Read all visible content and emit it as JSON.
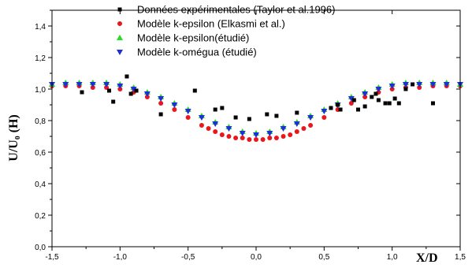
{
  "chart_data": {
    "type": "scatter",
    "xlabel": "X/D",
    "ylabel": "U/U₀ (H)",
    "xlim": [
      -1.5,
      1.5
    ],
    "ylim": [
      0.0,
      1.5
    ],
    "xticks": [
      -1.5,
      -1.0,
      -0.5,
      0.0,
      0.5,
      1.0,
      1.5
    ],
    "xtick_labels": [
      "-1,5",
      "-1,0",
      "-0,5",
      "0,0",
      "0,5",
      "1,0",
      "1,5"
    ],
    "yticks": [
      0.0,
      0.2,
      0.4,
      0.6,
      0.8,
      1.0,
      1.2,
      1.4
    ],
    "ytick_labels": [
      "0,0",
      "0,2",
      "0,4",
      "0,6",
      "0,8",
      "1,0",
      "1,2",
      "1,4"
    ],
    "grid": false,
    "legend_position": "top-center",
    "series": [
      {
        "name": "Données expérimentales (Taylor et al.1996)",
        "marker": "square",
        "color": "#000000",
        "x": [
          -1.28,
          -1.08,
          -1.05,
          -0.95,
          -0.92,
          -0.88,
          -0.7,
          -0.45,
          -0.3,
          -0.25,
          -0.15,
          -0.05,
          0.08,
          0.15,
          0.3,
          0.55,
          0.6,
          0.62,
          0.72,
          0.75,
          0.8,
          0.85,
          0.88,
          0.9,
          0.95,
          0.98,
          1.02,
          1.05,
          1.1,
          1.15,
          1.3
        ],
        "y": [
          0.98,
          0.99,
          0.92,
          1.08,
          0.97,
          0.99,
          0.84,
          0.99,
          0.87,
          0.88,
          0.82,
          0.81,
          0.84,
          0.83,
          0.85,
          0.88,
          0.9,
          0.87,
          0.93,
          0.87,
          0.89,
          0.95,
          0.97,
          0.93,
          0.91,
          0.91,
          0.94,
          0.91,
          1.0,
          1.03,
          0.91
        ]
      },
      {
        "name": "Modèle k-epsilon (Elkasmi et al.)",
        "marker": "circle",
        "color": "#e8171b",
        "x": [
          -1.5,
          -1.4,
          -1.3,
          -1.2,
          -1.1,
          -1.0,
          -0.9,
          -0.8,
          -0.7,
          -0.6,
          -0.5,
          -0.4,
          -0.35,
          -0.3,
          -0.25,
          -0.2,
          -0.15,
          -0.1,
          -0.05,
          0.0,
          0.05,
          0.1,
          0.15,
          0.2,
          0.25,
          0.3,
          0.35,
          0.4,
          0.5,
          0.6,
          0.7,
          0.8,
          0.9,
          1.0,
          1.1,
          1.2,
          1.3,
          1.4,
          1.5
        ],
        "y": [
          1.02,
          1.02,
          1.02,
          1.01,
          1.01,
          1.0,
          0.98,
          0.95,
          0.91,
          0.87,
          0.82,
          0.77,
          0.75,
          0.73,
          0.71,
          0.7,
          0.69,
          0.69,
          0.68,
          0.68,
          0.68,
          0.69,
          0.69,
          0.7,
          0.71,
          0.73,
          0.75,
          0.77,
          0.82,
          0.87,
          0.91,
          0.95,
          0.98,
          1.0,
          1.01,
          1.01,
          1.02,
          1.02,
          1.02
        ]
      },
      {
        "name": "Modèle k-epsilon(étudié)",
        "marker": "triangle-up",
        "color": "#22dd22",
        "x": [
          -1.5,
          -1.4,
          -1.3,
          -1.2,
          -1.1,
          -1.0,
          -0.9,
          -0.8,
          -0.7,
          -0.6,
          -0.5,
          -0.4,
          -0.3,
          -0.2,
          -0.1,
          0.0,
          0.1,
          0.2,
          0.3,
          0.4,
          0.5,
          0.6,
          0.7,
          0.8,
          0.9,
          1.0,
          1.1,
          1.2,
          1.3,
          1.4,
          1.5
        ],
        "y": [
          1.03,
          1.04,
          1.04,
          1.04,
          1.04,
          1.03,
          1.01,
          0.98,
          0.95,
          0.91,
          0.87,
          0.83,
          0.79,
          0.76,
          0.73,
          0.72,
          0.73,
          0.76,
          0.79,
          0.83,
          0.87,
          0.91,
          0.95,
          0.98,
          1.01,
          1.03,
          1.04,
          1.04,
          1.04,
          1.04,
          1.03
        ]
      },
      {
        "name": "Modèle k-omégua (étudié)",
        "marker": "triangle-down",
        "color": "#1f2fd8",
        "x": [
          -1.5,
          -1.4,
          -1.3,
          -1.2,
          -1.1,
          -1.0,
          -0.9,
          -0.8,
          -0.7,
          -0.6,
          -0.5,
          -0.4,
          -0.3,
          -0.2,
          -0.1,
          0.0,
          0.1,
          0.2,
          0.3,
          0.4,
          0.5,
          0.6,
          0.7,
          0.8,
          0.9,
          1.0,
          1.1,
          1.2,
          1.3,
          1.4,
          1.5
        ],
        "y": [
          1.03,
          1.03,
          1.03,
          1.03,
          1.03,
          1.02,
          1.0,
          0.97,
          0.94,
          0.9,
          0.86,
          0.82,
          0.78,
          0.75,
          0.72,
          0.71,
          0.72,
          0.75,
          0.78,
          0.82,
          0.86,
          0.9,
          0.94,
          0.97,
          1.0,
          1.02,
          1.03,
          1.03,
          1.03,
          1.03,
          1.03
        ]
      }
    ]
  }
}
